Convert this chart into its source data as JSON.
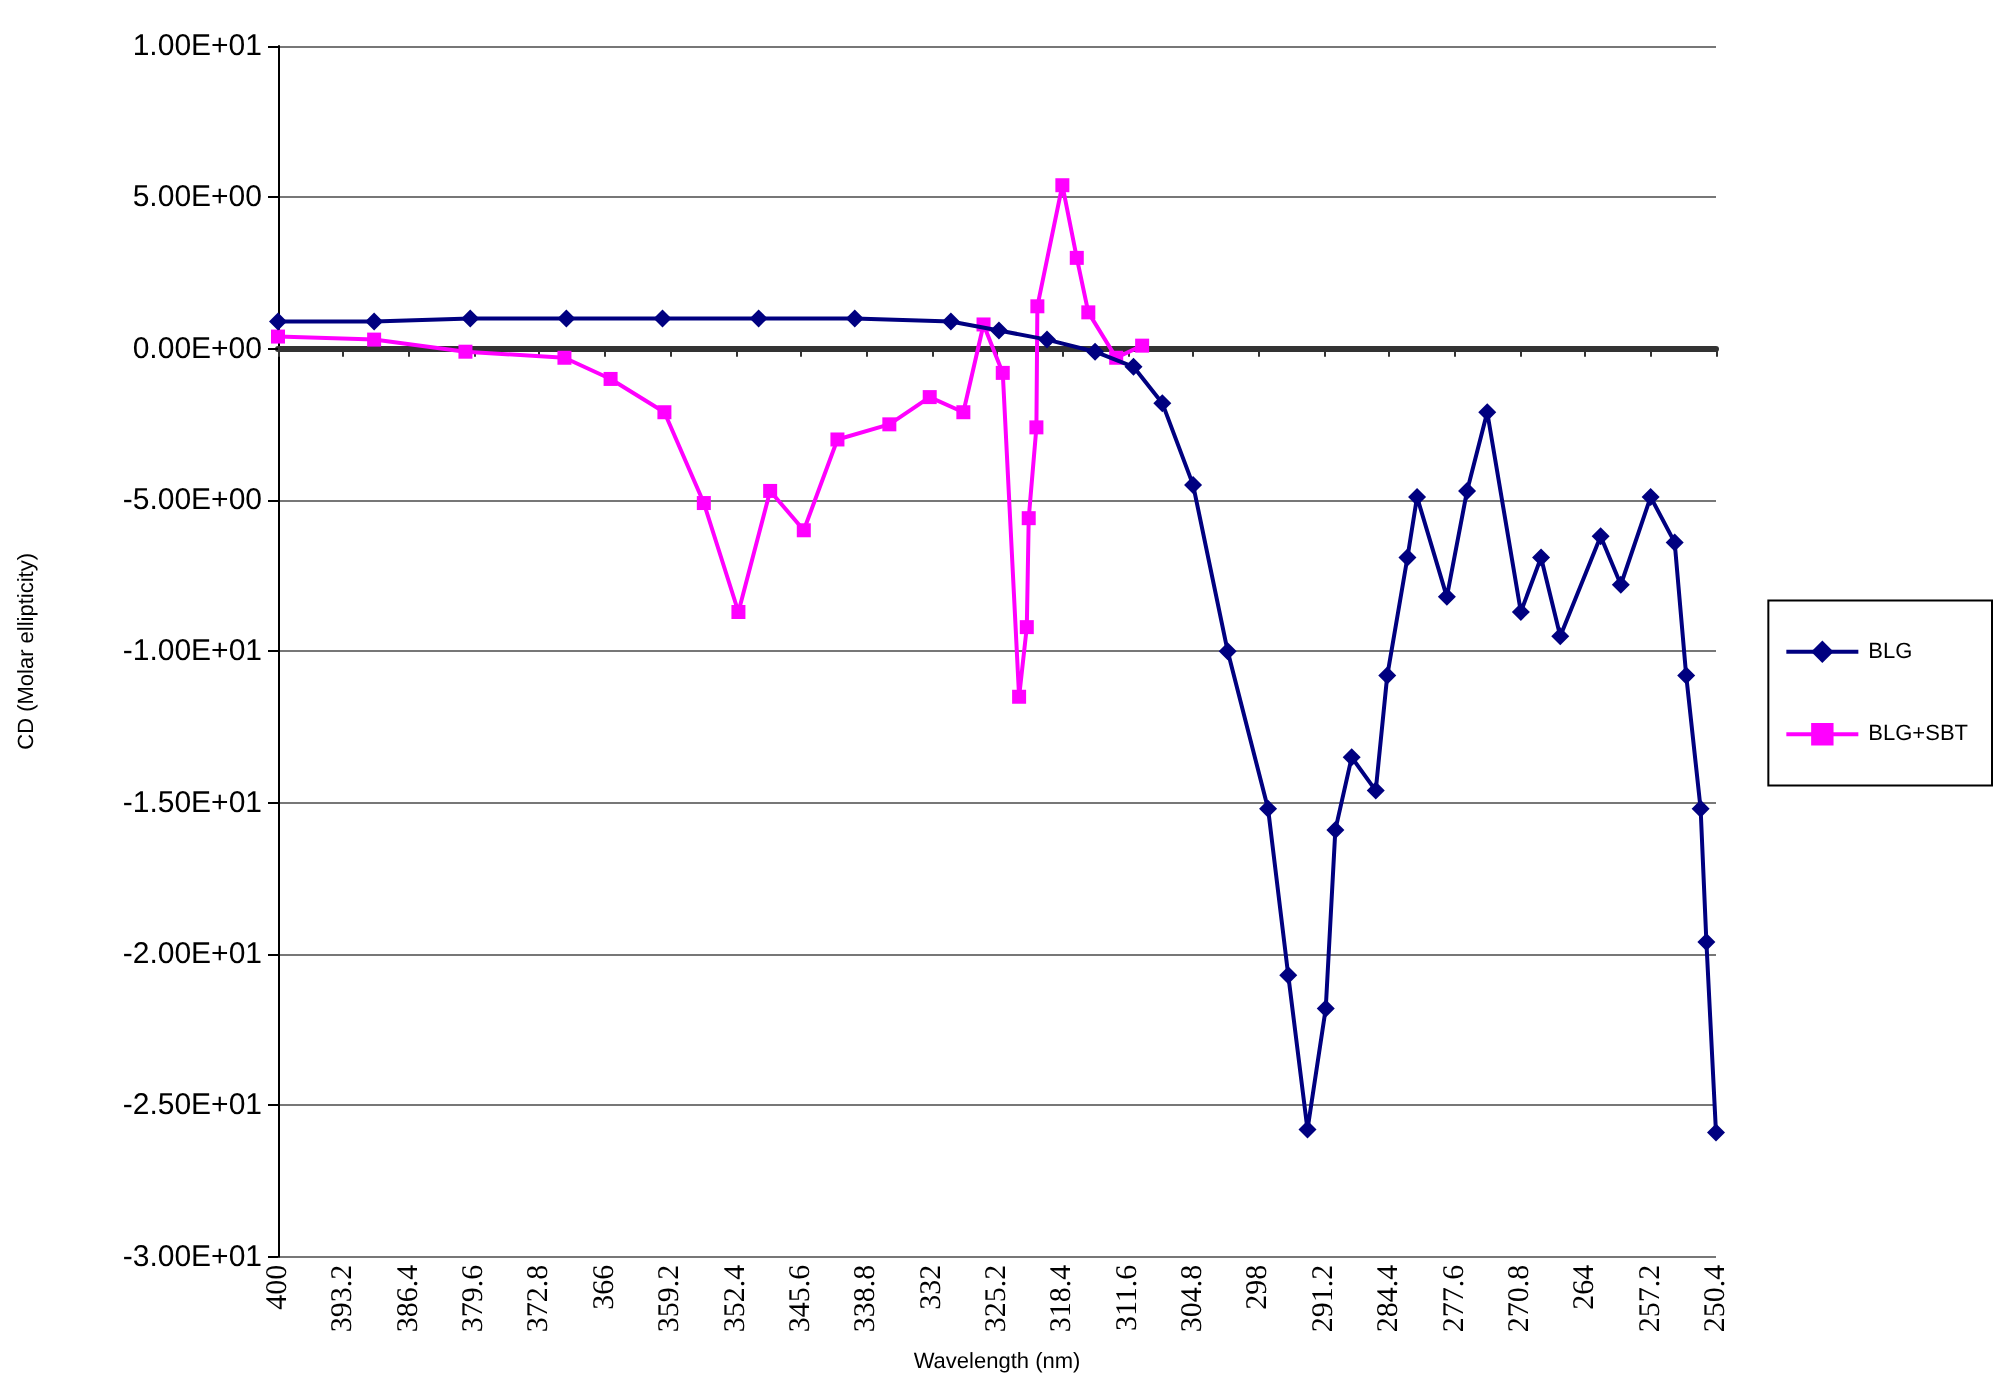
{
  "chart_data": {
    "type": "line",
    "xlabel": "Wavelength (nm)",
    "ylabel": "CD (Molar ellipticity)",
    "xlim": [
      400,
      250.4
    ],
    "xticks": [
      400,
      393.2,
      386.4,
      379.6,
      372.8,
      366,
      359.2,
      352.4,
      345.6,
      338.8,
      332,
      325.2,
      318.4,
      311.6,
      304.8,
      298,
      291.2,
      284.4,
      277.6,
      270.8,
      264,
      257.2,
      250.4
    ],
    "ylim": [
      -30,
      10
    ],
    "yticks": [
      {
        "value": -30,
        "label": "-3.00E+01"
      },
      {
        "value": -25,
        "label": "-2.50E+01"
      },
      {
        "value": -20,
        "label": "-2.00E+01"
      },
      {
        "value": -15,
        "label": "-1.50E+01"
      },
      {
        "value": -10,
        "label": "-1.00E+01"
      },
      {
        "value": -5,
        "label": "-5.00E+00"
      },
      {
        "value": 0,
        "label": "0.00E+00"
      },
      {
        "value": 5,
        "label": "5.00E+00"
      },
      {
        "value": 10,
        "label": "1.00E+01"
      }
    ],
    "grid": "y",
    "legend": "right",
    "series": [
      {
        "name": "BLG",
        "color": "#000080",
        "marker": "diamond",
        "x": [
          400,
          390,
          380,
          370,
          360,
          350,
          340,
          330,
          325,
          320,
          315,
          311,
          308,
          304.8,
          301.2,
          297,
          294.9,
          292.9,
          291,
          290,
          288.3,
          285.8,
          284.6,
          282.5,
          281.5,
          278.4,
          276.3,
          274.2,
          270.7,
          268.6,
          266.6,
          262.4,
          260.3,
          257.2,
          254.7,
          253.5,
          252,
          251.4,
          250.4
        ],
        "values": [
          0.9,
          0.9,
          1.0,
          1.0,
          1.0,
          1.0,
          1.0,
          0.9,
          0.6,
          0.3,
          -0.1,
          -0.6,
          -1.8,
          -4.5,
          -10.0,
          -15.2,
          -20.7,
          -25.8,
          -21.8,
          -15.9,
          -13.5,
          -14.6,
          -10.8,
          -6.9,
          -4.9,
          -8.2,
          -4.7,
          -2.1,
          -8.7,
          -6.9,
          -9.5,
          -6.2,
          -7.8,
          -4.9,
          -6.4,
          -10.8,
          -15.2,
          -19.6,
          -25.9
        ]
      },
      {
        "name": "BLG+SBT",
        "color": "#ff00ff",
        "marker": "square",
        "x": [
          400,
          390,
          380.5,
          370.2,
          365.4,
          359.8,
          355.7,
          352.1,
          348.8,
          345.3,
          341.8,
          336.4,
          332.2,
          328.7,
          326.6,
          324.6,
          322.9,
          322.1,
          321.9,
          321.1,
          321,
          318.4,
          316.9,
          315.7,
          312.8,
          310.1
        ],
        "values": [
          0.4,
          0.3,
          -0.1,
          -0.3,
          -1.0,
          -2.1,
          -5.1,
          -8.7,
          -4.7,
          -6.0,
          -3.0,
          -2.5,
          -1.6,
          -2.1,
          0.8,
          -0.8,
          -11.5,
          -9.2,
          -5.6,
          -2.6,
          1.4,
          5.4,
          3.0,
          1.2,
          -0.3,
          0.1
        ]
      }
    ]
  }
}
